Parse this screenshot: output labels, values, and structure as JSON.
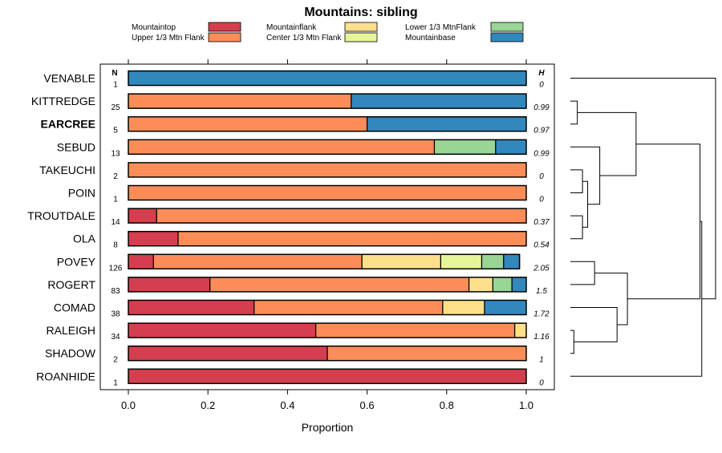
{
  "chart_data": {
    "type": "bar",
    "subtype": "stacked-horizontal-proportion",
    "title": "Mountains: sibling",
    "xlabel": "Proportion",
    "ylabel": "",
    "xlim": [
      0,
      1
    ],
    "x_ticks": [
      0.0,
      0.2,
      0.4,
      0.6,
      0.8,
      1.0
    ],
    "x_tick_labels": [
      "0.0",
      "0.2",
      "0.4",
      "0.6",
      "0.8",
      "1.0"
    ],
    "n_header": "N",
    "h_header": "H",
    "legend": [
      {
        "name": "Mountaintop",
        "color": "#d53e4f"
      },
      {
        "name": "Upper 1/3 Mtn Flank",
        "color": "#fc8d59"
      },
      {
        "name": "Mountainflank",
        "color": "#fee08b"
      },
      {
        "name": "Center 1/3 Mtn Flank",
        "color": "#e6f598"
      },
      {
        "name": "Lower 1/3 MtnFlank",
        "color": "#99d594"
      },
      {
        "name": "Mountainbase",
        "color": "#3288bd"
      }
    ],
    "categories": [
      "VENABLE",
      "KITTREDGE",
      "EARCREE",
      "SEBUD",
      "TAKEUCHI",
      "POIN",
      "TROUTDALE",
      "OLA",
      "POVEY",
      "ROGERT",
      "COMAD",
      "RALEIGH",
      "SHADOW",
      "ROANHIDE"
    ],
    "bold_categories": [
      "EARCREE"
    ],
    "n": [
      "1",
      "25",
      "5",
      "13",
      "2",
      "1",
      "14",
      "8",
      "126",
      "83",
      "38",
      "34",
      "2",
      "1"
    ],
    "h": [
      "0",
      "0.99",
      "0.97",
      "0.99",
      "0",
      "0",
      "0.37",
      "0.54",
      "2.05",
      "1.5",
      "1.72",
      "1.16",
      "1",
      "0"
    ],
    "series": [
      {
        "name": "Mountaintop",
        "values": [
          0,
          0,
          0,
          0,
          0,
          0,
          0.071,
          0.125,
          0.063,
          0.205,
          0.316,
          0.471,
          0.5,
          1.0
        ]
      },
      {
        "name": "Upper 1/3 Mtn Flank",
        "values": [
          0,
          0.56,
          0.6,
          0.769,
          1.0,
          1.0,
          0.929,
          0.875,
          0.524,
          0.651,
          0.474,
          0.5,
          0.5,
          0
        ]
      },
      {
        "name": "Mountainflank",
        "values": [
          0,
          0,
          0,
          0,
          0,
          0,
          0,
          0,
          0.198,
          0.06,
          0.105,
          0.029,
          0,
          0
        ]
      },
      {
        "name": "Center 1/3 Mtn Flank",
        "values": [
          0,
          0,
          0,
          0,
          0,
          0,
          0,
          0,
          0.103,
          0,
          0,
          0,
          0,
          0
        ]
      },
      {
        "name": "Lower 1/3 MtnFlank",
        "values": [
          0,
          0,
          0,
          0.154,
          0,
          0,
          0,
          0,
          0.055,
          0.048,
          0,
          0,
          0,
          0
        ]
      },
      {
        "name": "Mountainbase",
        "values": [
          1.0,
          0.44,
          0.4,
          0.077,
          0,
          0,
          0,
          0,
          0.04,
          0.036,
          0.105,
          0,
          0,
          0
        ]
      }
    ],
    "dendrogram": {
      "orientation": "right",
      "leaves": [
        "VENABLE",
        "KITTREDGE",
        "EARCREE",
        "SEBUD",
        "TAKEUCHI",
        "POIN",
        "TROUTDALE",
        "OLA",
        "POVEY",
        "ROGERT",
        "COMAD",
        "RALEIGH",
        "SHADOW",
        "ROANHIDE"
      ],
      "merges": [
        {
          "a": "KITTREDGE",
          "b": "EARCREE",
          "height": 0.04
        },
        {
          "a": "TAKEUCHI",
          "b": "POIN",
          "height": 0.07
        },
        {
          "a": "TROUTDALE",
          "b": "OLA",
          "height": 0.07
        },
        {
          "a": "m2",
          "b": "m3",
          "height": 0.1
        },
        {
          "a": "SEBUD",
          "b": "m4",
          "height": 0.17
        },
        {
          "a": "m1",
          "b": "m5",
          "height": 0.38
        },
        {
          "a": "RALEIGH",
          "b": "SHADOW",
          "height": 0.02
        },
        {
          "a": "POVEY",
          "b": "ROGERT",
          "height": 0.14
        },
        {
          "a": "COMAD",
          "b": "m7",
          "height": 0.27
        },
        {
          "a": "m8",
          "b": "m9",
          "height": 0.33
        },
        {
          "a": "m6",
          "b": "m10",
          "height": 0.75
        },
        {
          "a": "m11",
          "b": "ROANHIDE",
          "height": 0.76
        },
        {
          "a": "VENABLE",
          "b": "m12",
          "height": 0.84
        }
      ]
    }
  }
}
